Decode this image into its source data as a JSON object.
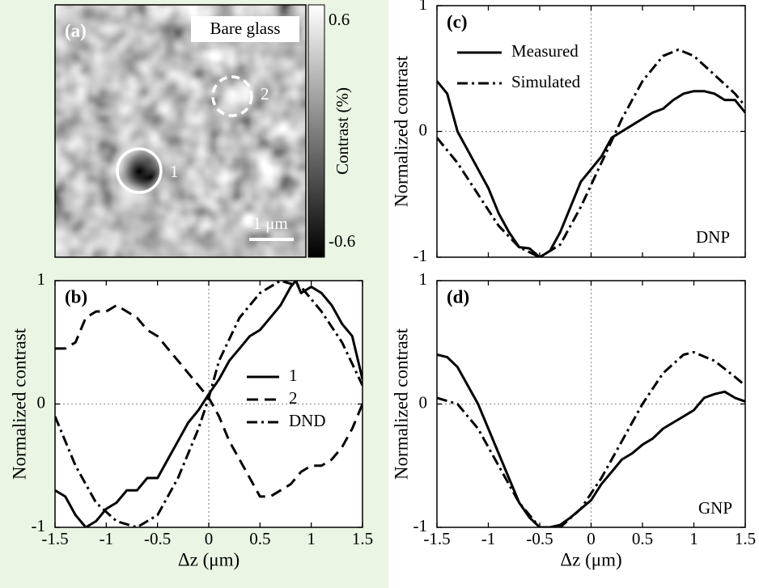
{
  "chart_data": [
    {
      "type": "image",
      "label": "(a)",
      "annotation": "Bare glass",
      "markers": [
        "1",
        "2"
      ],
      "scalebar": "1 μm",
      "colorbar_label": "Contrast (%)",
      "clim": [
        -0.6,
        0.6
      ],
      "cticks": [
        -0.6,
        0.6
      ]
    },
    {
      "type": "line",
      "label": "(b)",
      "xlabel": "Δz (μm)",
      "ylabel": "Normalized contrast",
      "xlim": [
        -1.5,
        1.5
      ],
      "ylim": [
        -1,
        1
      ],
      "xticks": [
        -1.5,
        -1,
        -0.5,
        0,
        0.5,
        1,
        1.5
      ],
      "yticks": [
        -1,
        0,
        1
      ],
      "grid_x": [
        0
      ],
      "grid_y": [
        0
      ],
      "series": [
        {
          "name": "1",
          "style": "solid",
          "color": "#000",
          "x": [
            -1.5,
            -1.4,
            -1.3,
            -1.2,
            -1.1,
            -1.0,
            -0.9,
            -0.8,
            -0.7,
            -0.6,
            -0.5,
            -0.4,
            -0.3,
            -0.2,
            -0.1,
            0,
            0.1,
            0.2,
            0.3,
            0.4,
            0.5,
            0.6,
            0.7,
            0.8,
            0.85,
            0.9,
            1.0,
            1.1,
            1.2,
            1.3,
            1.4,
            1.5
          ],
          "values": [
            -0.7,
            -0.75,
            -0.9,
            -1.0,
            -0.95,
            -0.85,
            -0.8,
            -0.7,
            -0.7,
            -0.6,
            -0.6,
            -0.45,
            -0.3,
            -0.15,
            -0.05,
            0.08,
            0.2,
            0.35,
            0.45,
            0.55,
            0.6,
            0.7,
            0.8,
            0.95,
            1.0,
            0.9,
            0.95,
            0.9,
            0.8,
            0.65,
            0.55,
            0.2
          ]
        },
        {
          "name": "2",
          "style": "dashed",
          "color": "#000",
          "x": [
            -1.5,
            -1.4,
            -1.3,
            -1.2,
            -1.1,
            -1.0,
            -0.9,
            -0.8,
            -0.7,
            -0.6,
            -0.5,
            -0.4,
            -0.3,
            -0.2,
            -0.1,
            0,
            0.1,
            0.2,
            0.3,
            0.4,
            0.5,
            0.6,
            0.7,
            0.8,
            0.9,
            1.0,
            1.1,
            1.2,
            1.3,
            1.4,
            1.5
          ],
          "values": [
            0.45,
            0.45,
            0.5,
            0.7,
            0.75,
            0.75,
            0.8,
            0.75,
            0.7,
            0.6,
            0.55,
            0.45,
            0.35,
            0.25,
            0.15,
            0.05,
            -0.1,
            -0.3,
            -0.45,
            -0.6,
            -0.75,
            -0.75,
            -0.7,
            -0.65,
            -0.55,
            -0.5,
            -0.5,
            -0.45,
            -0.35,
            -0.2,
            0.0
          ]
        },
        {
          "name": "DND",
          "style": "dashdot",
          "color": "#000",
          "x": [
            -1.5,
            -1.3,
            -1.1,
            -0.9,
            -0.7,
            -0.5,
            -0.3,
            -0.1,
            0,
            0.1,
            0.3,
            0.5,
            0.7,
            0.9,
            1.1,
            1.3,
            1.5
          ],
          "values": [
            -0.1,
            -0.5,
            -0.8,
            -0.95,
            -1.0,
            -0.9,
            -0.6,
            -0.2,
            0.05,
            0.35,
            0.7,
            0.9,
            1.0,
            0.95,
            0.75,
            0.5,
            0.15
          ]
        }
      ]
    },
    {
      "type": "line",
      "label": "(c)",
      "ylabel": "Normalized contrast",
      "annotation": "DNP",
      "show_xtick_labels": false,
      "xlim": [
        -1.5,
        1.5
      ],
      "ylim": [
        -1,
        1
      ],
      "xticks": [
        -1.5,
        -1,
        -0.5,
        0,
        0.5,
        1,
        1.5
      ],
      "yticks": [
        -1,
        0,
        1
      ],
      "grid_x": [
        0
      ],
      "grid_y": [
        0
      ],
      "series": [
        {
          "name": "Measured",
          "style": "solid",
          "color": "#000",
          "x": [
            -1.5,
            -1.4,
            -1.3,
            -1.2,
            -1.1,
            -1.0,
            -0.9,
            -0.8,
            -0.7,
            -0.6,
            -0.5,
            -0.4,
            -0.3,
            -0.2,
            -0.1,
            0,
            0.1,
            0.2,
            0.3,
            0.4,
            0.5,
            0.6,
            0.7,
            0.8,
            0.9,
            1.0,
            1.1,
            1.2,
            1.3,
            1.4,
            1.5
          ],
          "values": [
            0.4,
            0.3,
            0.0,
            -0.15,
            -0.3,
            -0.45,
            -0.65,
            -0.8,
            -0.92,
            -0.93,
            -1.0,
            -0.95,
            -0.8,
            -0.6,
            -0.4,
            -0.3,
            -0.2,
            -0.05,
            0.0,
            0.05,
            0.1,
            0.15,
            0.18,
            0.25,
            0.3,
            0.32,
            0.32,
            0.3,
            0.25,
            0.25,
            0.15
          ]
        },
        {
          "name": "Simulated",
          "style": "dashdot",
          "color": "#000",
          "x": [
            -1.5,
            -1.3,
            -1.1,
            -0.9,
            -0.7,
            -0.5,
            -0.3,
            -0.1,
            0.1,
            0.3,
            0.5,
            0.7,
            0.85,
            1.0,
            1.2,
            1.4,
            1.5
          ],
          "values": [
            -0.05,
            -0.25,
            -0.5,
            -0.75,
            -0.92,
            -1.0,
            -0.9,
            -0.6,
            -0.25,
            0.1,
            0.4,
            0.6,
            0.65,
            0.6,
            0.45,
            0.3,
            0.2
          ]
        }
      ]
    },
    {
      "type": "line",
      "label": "(d)",
      "xlabel": "Δz (μm)",
      "ylabel": "Normalized contrast",
      "annotation": "GNP",
      "xlim": [
        -1.5,
        1.5
      ],
      "ylim": [
        -1,
        1
      ],
      "xticks": [
        -1.5,
        -1,
        -0.5,
        0,
        0.5,
        1,
        1.5
      ],
      "yticks": [
        -1,
        0,
        1
      ],
      "grid_x": [
        0
      ],
      "grid_y": [
        0
      ],
      "series": [
        {
          "name": "Measured",
          "style": "solid",
          "color": "#000",
          "x": [
            -1.5,
            -1.4,
            -1.3,
            -1.2,
            -1.1,
            -1.0,
            -0.9,
            -0.8,
            -0.7,
            -0.6,
            -0.5,
            -0.4,
            -0.3,
            -0.2,
            -0.1,
            0,
            0.1,
            0.2,
            0.3,
            0.4,
            0.5,
            0.6,
            0.7,
            0.8,
            0.9,
            1.0,
            1.1,
            1.2,
            1.3,
            1.4,
            1.5
          ],
          "values": [
            0.4,
            0.38,
            0.3,
            0.15,
            0.0,
            -0.2,
            -0.4,
            -0.6,
            -0.8,
            -0.92,
            -1.0,
            -1.0,
            -0.98,
            -0.92,
            -0.85,
            -0.78,
            -0.65,
            -0.55,
            -0.45,
            -0.4,
            -0.33,
            -0.28,
            -0.2,
            -0.15,
            -0.1,
            -0.05,
            0.05,
            0.08,
            0.1,
            0.05,
            0.02
          ]
        },
        {
          "name": "Simulated",
          "style": "dashdot",
          "color": "#000",
          "x": [
            -1.5,
            -1.3,
            -1.1,
            -0.9,
            -0.7,
            -0.5,
            -0.3,
            -0.1,
            0.1,
            0.3,
            0.5,
            0.7,
            0.9,
            1.0,
            1.2,
            1.4,
            1.5
          ],
          "values": [
            0.05,
            0.0,
            -0.2,
            -0.5,
            -0.8,
            -1.0,
            -1.0,
            -0.85,
            -0.6,
            -0.3,
            0.0,
            0.25,
            0.4,
            0.42,
            0.35,
            0.22,
            0.15
          ]
        }
      ]
    }
  ]
}
